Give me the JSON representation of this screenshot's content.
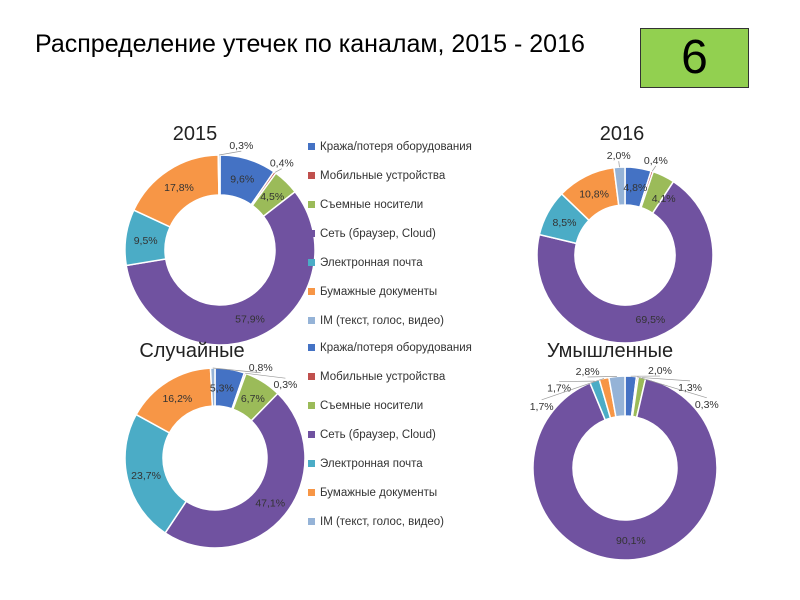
{
  "title": "Распределение утечек по каналам, 2015 - 2016",
  "slide_number": "6",
  "legend": [
    "Кража/потеря оборудования",
    "Мобильные устройства",
    "Съемные носители",
    "Сеть (браузер, Cloud)",
    "Электронная почта",
    "Бумажные документы",
    "IM (текст, голос, видео)"
  ],
  "colors": [
    "#4472c4",
    "#c0504d",
    "#9bbb59",
    "#7052a0",
    "#4bacc6",
    "#f79646",
    "#95b3d7"
  ],
  "chart_data": [
    {
      "type": "pie",
      "title": "2015",
      "categories": [
        "Кража/потеря оборудования",
        "Мобильные устройства",
        "Съемные носители",
        "Сеть (браузер, Cloud)",
        "Электронная почта",
        "Бумажные документы",
        "IM (текст, голос, видео)"
      ],
      "values": [
        9.6,
        0.4,
        4.5,
        57.9,
        9.5,
        17.8,
        0.3
      ],
      "labels": [
        "9,6%",
        "0,4%",
        "4,5%",
        "57,9%",
        "9,5%",
        "17,8%",
        "0,3%"
      ]
    },
    {
      "type": "pie",
      "title": "2016",
      "categories": [
        "Кража/потеря оборудования",
        "Мобильные устройства",
        "Съемные носители",
        "Сеть (браузер, Cloud)",
        "Электронная почта",
        "Бумажные документы",
        "IM (текст, голос, видео)"
      ],
      "values": [
        4.8,
        0.4,
        4.1,
        69.5,
        8.5,
        10.8,
        2.0
      ],
      "labels": [
        "4,8%",
        "0,4%",
        "4,1%",
        "69,5%",
        "8,5%",
        "10,8%",
        "2,0%"
      ]
    },
    {
      "type": "pie",
      "title": "Случайные",
      "categories": [
        "Кража/потеря оборудования",
        "Мобильные устройства",
        "Съемные носители",
        "Сеть (браузер, Cloud)",
        "Электронная почта",
        "Бумажные документы",
        "IM (текст, голос, видео)"
      ],
      "values": [
        5.3,
        0.3,
        6.7,
        47.1,
        23.7,
        16.2,
        0.8
      ],
      "labels": [
        "5,3%",
        "0,3%",
        "6,7%",
        "47,1%",
        "23,7%",
        "16,2%",
        "0,8%"
      ]
    },
    {
      "type": "pie",
      "title": "Умышленные",
      "categories": [
        "Кража/потеря оборудования",
        "Мобильные устройства",
        "Съемные носители",
        "Сеть (браузер, Cloud)",
        "Электронная почта",
        "Бумажные документы",
        "IM (текст, голос, видео)"
      ],
      "values": [
        2.0,
        0.3,
        1.3,
        90.1,
        1.7,
        1.7,
        2.8
      ],
      "labels": [
        "2,0%",
        "0,3%",
        "1,3%",
        "90,1%",
        "1,7%",
        "1,7%",
        "2,8%"
      ]
    }
  ]
}
